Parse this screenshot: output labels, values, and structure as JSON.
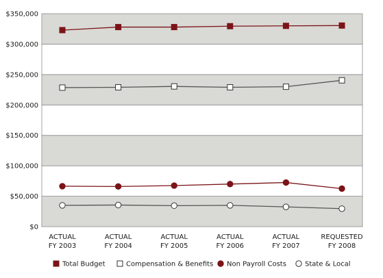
{
  "chart_data": {
    "type": "line",
    "categories": [
      [
        "ACTUAL",
        "FY 2003"
      ],
      [
        "ACTUAL",
        "FY 2004"
      ],
      [
        "ACTUAL",
        "FY 2005"
      ],
      [
        "ACTUAL",
        "FY 2006"
      ],
      [
        "ACTUAL",
        "FY 2007"
      ],
      [
        "REQUESTED",
        "FY 2008"
      ]
    ],
    "ylim": [
      0,
      350000
    ],
    "yticks": [
      0,
      50000,
      100000,
      150000,
      200000,
      250000,
      300000,
      350000
    ],
    "ytick_labels": [
      "$0",
      "$50,000",
      "$100,000",
      "$150,000",
      "$200,000",
      "$250,000",
      "$300,000",
      "$350,000"
    ],
    "grid": "alternating horizontal bands",
    "legend_position": "bottom",
    "series": [
      {
        "name": "Total Budget",
        "marker": "square",
        "filled": true,
        "color": "#7b1418",
        "values": [
          323000,
          328000,
          328000,
          329500,
          330000,
          330500
        ]
      },
      {
        "name": "Compensation & Benefits",
        "marker": "square",
        "filled": false,
        "color": "#555555",
        "values": [
          228500,
          229000,
          230500,
          229000,
          230000,
          240500
        ]
      },
      {
        "name": "Non Payroll Costs",
        "marker": "circle",
        "filled": true,
        "color": "#7b1418",
        "values": [
          66500,
          66000,
          67500,
          70000,
          72500,
          62500
        ]
      },
      {
        "name": "State & Local",
        "marker": "circle",
        "filled": false,
        "color": "#555555",
        "values": [
          35000,
          35500,
          34500,
          35000,
          32500,
          29500
        ]
      }
    ],
    "band_color": "#d9d9d5"
  }
}
